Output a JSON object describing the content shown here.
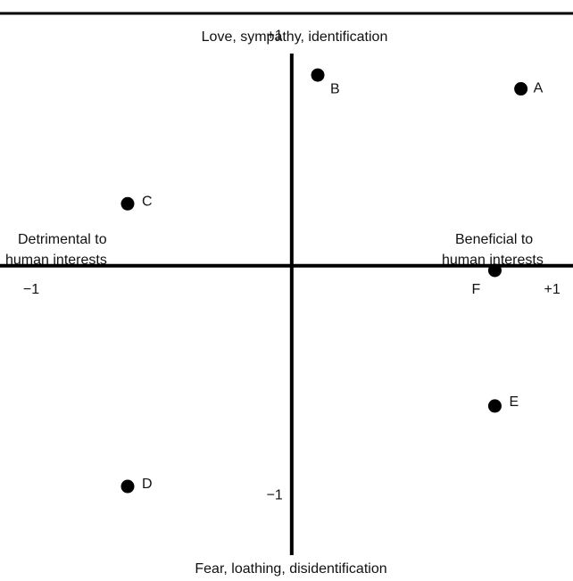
{
  "chart_data": {
    "type": "scatter",
    "top_label": "Love, sympathy, identification",
    "bottom_label": "Fear, loathing, disidentification",
    "left_label": [
      "Detrimental to",
      "human interests"
    ],
    "right_label": [
      "Beneficial to",
      "human interests"
    ],
    "x": [
      0.88,
      0.1,
      -0.63,
      -0.63,
      0.78,
      0.78
    ],
    "values": [
      0.77,
      0.83,
      0.27,
      -0.96,
      -0.61,
      -0.02
    ],
    "point_labels": [
      "A",
      "B",
      "C",
      "D",
      "E",
      "F"
    ],
    "color": "#000000",
    "xlim": [
      -1.12,
      1.08
    ],
    "ylim": [
      -1.29,
      1.04
    ],
    "xticks": [
      {
        "value": -1,
        "label": "−1"
      },
      {
        "value": 1,
        "label": "+1"
      }
    ],
    "yticks": [
      {
        "value": 1,
        "label": "+1"
      },
      {
        "value": -1,
        "label": "−1"
      }
    ]
  }
}
